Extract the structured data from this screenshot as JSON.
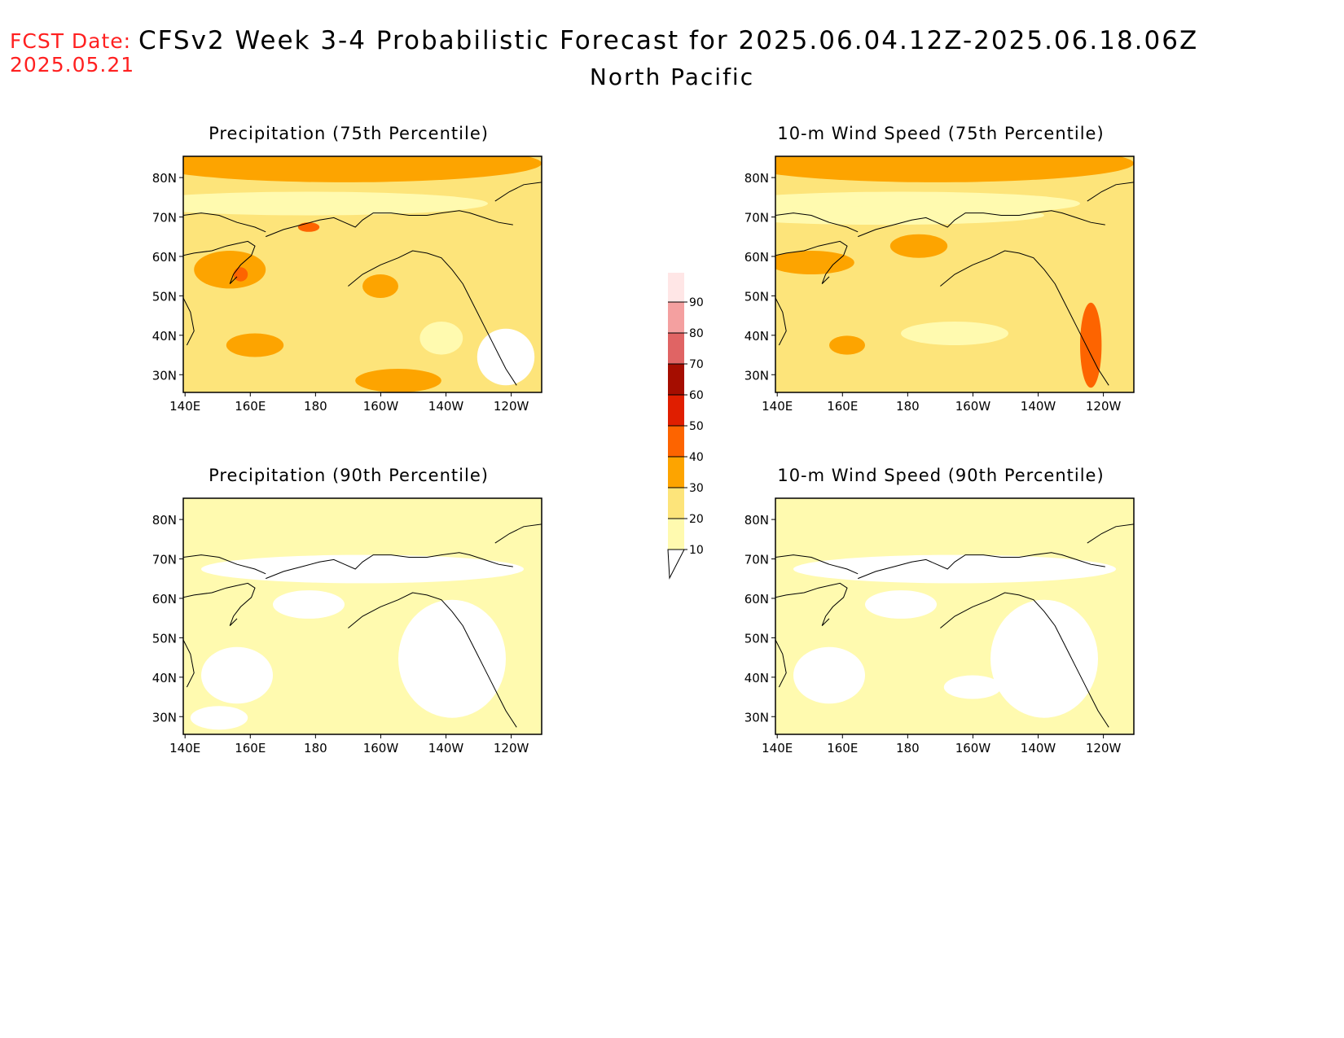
{
  "header": {
    "fcst_label": "FCST Date:",
    "fcst_date": "2025.05.21",
    "title": "CFSv2 Week 3-4 Probabilistic Forecast for 2025.06.04.12Z-2025.06.18.06Z",
    "region": "North Pacific"
  },
  "panels": [
    {
      "title": "Precipitation (75th Percentile)",
      "variable": "precipitation",
      "percentile": 75
    },
    {
      "title": "10-m Wind Speed (75th Percentile)",
      "variable": "wind",
      "percentile": 75
    },
    {
      "title": "Precipitation (90th Percentile)",
      "variable": "precipitation",
      "percentile": 90
    },
    {
      "title": "10-m Wind Speed (90th Percentile)",
      "variable": "wind",
      "percentile": 90
    }
  ],
  "axes": {
    "lon_labels": [
      "140E",
      "160E",
      "180",
      "160W",
      "140W",
      "120W"
    ],
    "lat_labels": [
      "80N",
      "70N",
      "60N",
      "50N",
      "40N",
      "30N"
    ]
  },
  "colorbar": {
    "levels": [
      "10",
      "20",
      "30",
      "40",
      "50",
      "60",
      "70",
      "80",
      "90"
    ],
    "colors": [
      "#fffaaf",
      "#fde47a",
      "#fda400",
      "#fd6400",
      "#e01e00",
      "#a50d00",
      "#e06464",
      "#f4a0a0",
      "#ffe6e6"
    ]
  },
  "colors": {
    "title_red": "#ff2020",
    "white": "#ffffff",
    "light_yellow": "#fffaaf",
    "yellow": "#fde47a",
    "orange": "#fda400",
    "dark_orange": "#fd6400",
    "red": "#e01e00"
  }
}
